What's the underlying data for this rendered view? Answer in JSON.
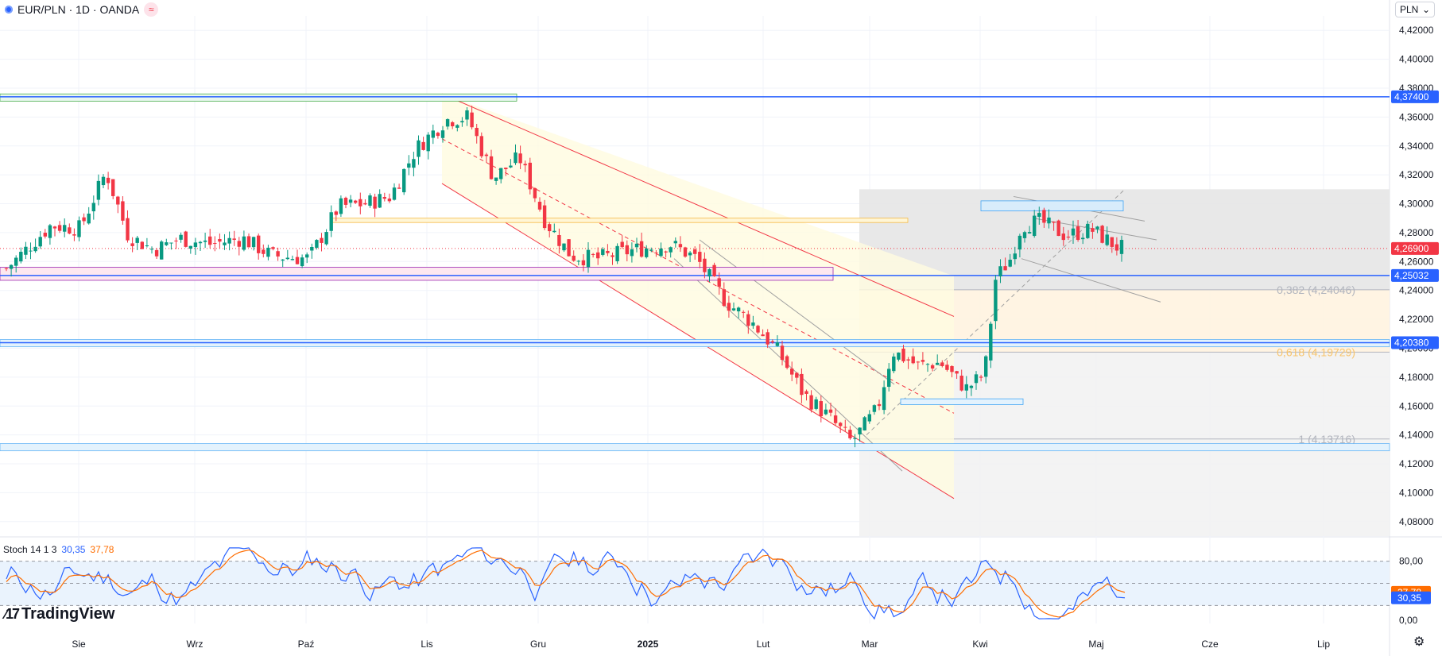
{
  "header": {
    "symbol": "EUR/PLN · 1D · OANDA",
    "currency_selector": "PLN",
    "currency_chevron": "⌄"
  },
  "brand": {
    "mark": "⁄17",
    "name": "TradingView"
  },
  "colors": {
    "up": "#089981",
    "down": "#f23645",
    "blue_line": "#2962ff",
    "stoch_k": "#2962ff",
    "stoch_d": "#ff6d00",
    "grid": "#f0f3fa"
  },
  "chart_data": {
    "type": "candlestick",
    "title": "EUR/PLN · 1D · OANDA",
    "ylim": [
      4.07,
      4.43
    ],
    "y_ticks": [
      "4,42000",
      "4,40000",
      "4,38000",
      "4,36000",
      "4,34000",
      "4,32000",
      "4,30000",
      "4,28000",
      "4,26000",
      "4,24000",
      "4,22000",
      "4,20000",
      "4,18000",
      "4,16000",
      "4,14000",
      "4,12000",
      "4,10000",
      "4,08000"
    ],
    "x_labels": [
      "Sie",
      "Wrz",
      "Paź",
      "Lis",
      "Gru",
      "2025",
      "Lut",
      "Mar",
      "Kwi",
      "Maj",
      "Cze",
      "Lip"
    ],
    "price_path": [
      [
        "2024-07-10",
        4.255
      ],
      [
        "2024-07-22",
        4.285
      ],
      [
        "2024-07-30",
        4.283
      ],
      [
        "2024-08-06",
        4.322
      ],
      [
        "2024-08-12",
        4.278
      ],
      [
        "2024-08-19",
        4.268
      ],
      [
        "2024-08-26",
        4.276
      ],
      [
        "2024-09-03",
        4.272
      ],
      [
        "2024-09-12",
        4.276
      ],
      [
        "2024-09-20",
        4.264
      ],
      [
        "2024-09-30",
        4.262
      ],
      [
        "2024-10-08",
        4.298
      ],
      [
        "2024-10-15",
        4.3
      ],
      [
        "2024-10-22",
        4.305
      ],
      [
        "2024-10-29",
        4.338
      ],
      [
        "2024-11-06",
        4.358
      ],
      [
        "2024-11-12",
        4.36
      ],
      [
        "2024-11-19",
        4.318
      ],
      [
        "2024-11-26",
        4.332
      ],
      [
        "2024-12-03",
        4.288
      ],
      [
        "2024-12-10",
        4.264
      ],
      [
        "2024-12-17",
        4.262
      ],
      [
        "2024-12-27",
        4.268
      ],
      [
        "2025-01-06",
        4.272
      ],
      [
        "2025-01-13",
        4.262
      ],
      [
        "2025-01-21",
        4.232
      ],
      [
        "2025-01-28",
        4.218
      ],
      [
        "2025-02-04",
        4.198
      ],
      [
        "2025-02-11",
        4.168
      ],
      [
        "2025-02-18",
        4.152
      ],
      [
        "2025-02-24",
        4.135
      ],
      [
        "2025-03-03",
        4.158
      ],
      [
        "2025-03-07",
        4.198
      ],
      [
        "2025-03-14",
        4.188
      ],
      [
        "2025-03-20",
        4.19
      ],
      [
        "2025-03-27",
        4.172
      ],
      [
        "2025-04-01",
        4.182
      ],
      [
        "2025-04-04",
        4.248
      ],
      [
        "2025-04-08",
        4.262
      ],
      [
        "2025-04-11",
        4.285
      ],
      [
        "2025-04-16",
        4.288
      ],
      [
        "2025-04-23",
        4.278
      ],
      [
        "2025-04-30",
        4.282
      ],
      [
        "2025-05-07",
        4.27
      ],
      [
        "2025-05-09",
        4.269
      ]
    ],
    "current_price": {
      "value": 4.269,
      "label": "4,26900"
    },
    "levels": [
      {
        "value": 4.374,
        "label": "4,37400"
      },
      {
        "value": 4.25032,
        "label": "4,25032"
      },
      {
        "value": 4.2038,
        "label": "4,20380"
      }
    ],
    "fibonacci": [
      {
        "ratio": "0,382",
        "value": 4.24046,
        "label": "0,382 (4,24046)"
      },
      {
        "ratio": "0,618",
        "value": 4.19729,
        "label": "0,618 (4,19729)"
      },
      {
        "ratio": "1",
        "value": 4.13716,
        "label": "1 (4,13716)"
      }
    ],
    "stochastic": {
      "name": "Stoch 14 1 3",
      "k": 30.35,
      "k_label": "30,35",
      "d": 37.78,
      "d_label": "37,78",
      "ticks": [
        "80,00",
        "0,00"
      ],
      "overbought": 80,
      "oversold": 20
    }
  }
}
